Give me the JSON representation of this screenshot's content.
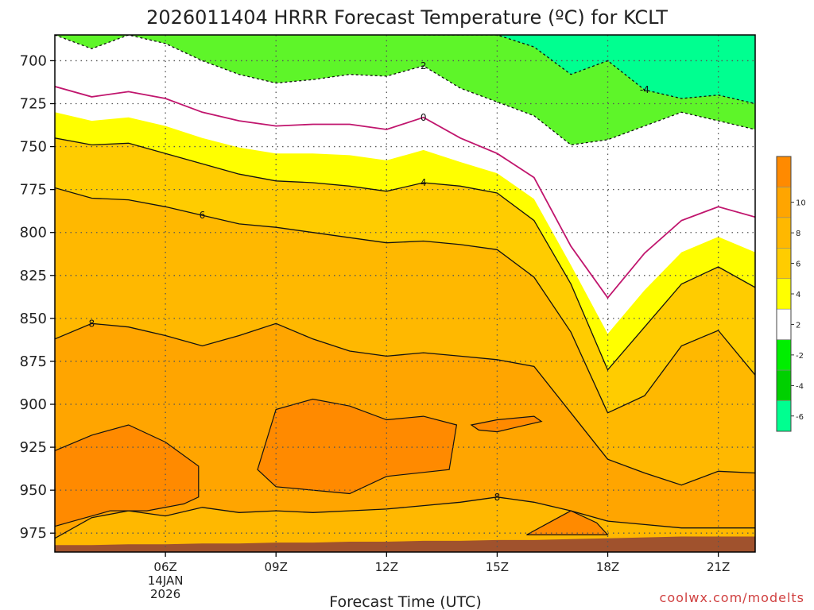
{
  "chart_data": {
    "type": "heatmap",
    "title": "2026011404 HRRR Forecast Temperature (ºC) for KCLT",
    "xlabel": "Forecast Time (UTC)",
    "ylabel": "",
    "credit": "coolwx.com/modelts",
    "x_hours": [
      3,
      4,
      5,
      6,
      7,
      8,
      9,
      10,
      11,
      12,
      13,
      14,
      15,
      16,
      17,
      18,
      19,
      20,
      21,
      22
    ],
    "x_ticks": [
      {
        "hour": 6,
        "lines": [
          "06Z",
          "14JAN",
          "2026"
        ]
      },
      {
        "hour": 9,
        "lines": [
          "09Z"
        ]
      },
      {
        "hour": 12,
        "lines": [
          "12Z"
        ]
      },
      {
        "hour": 15,
        "lines": [
          "15Z"
        ]
      },
      {
        "hour": 18,
        "lines": [
          "18Z"
        ]
      },
      {
        "hour": 21,
        "lines": [
          "21Z"
        ]
      }
    ],
    "xlim": [
      3,
      22
    ],
    "ylim": [
      986,
      685
    ],
    "y_ticks": [
      700,
      725,
      750,
      775,
      800,
      825,
      850,
      875,
      900,
      925,
      950,
      975
    ],
    "surface_pressure_hpa": [
      982,
      982,
      981.5,
      981.5,
      981,
      981,
      980.5,
      980.5,
      980,
      980,
      979.5,
      979.5,
      979,
      979,
      978.5,
      978,
      977.5,
      977,
      977,
      977
    ],
    "isotherms": [
      {
        "temp": 2,
        "label": "2",
        "label_hour": 13,
        "pressure": [
          685,
          693,
          685,
          690,
          700,
          708,
          713,
          711,
          708,
          709,
          703,
          716,
          724,
          732,
          749,
          746,
          738,
          730,
          735,
          740
        ]
      },
      {
        "temp": -4,
        "label": "-4",
        "label_hour": 19,
        "pressure": [
          null,
          null,
          null,
          null,
          null,
          null,
          null,
          null,
          null,
          null,
          685,
          685,
          685,
          692,
          708,
          700,
          717,
          722,
          720,
          725
        ]
      },
      {
        "temp": 0,
        "label": "0",
        "label_hour": 13,
        "pressure": [
          715,
          721,
          718,
          722,
          730,
          735,
          738,
          737,
          737,
          740,
          733,
          745,
          754,
          768,
          808,
          838,
          812,
          793,
          785,
          791
        ]
      },
      {
        "temp": 4,
        "label": "4",
        "label_hour": 13,
        "pressure": [
          745,
          749,
          748,
          754,
          760,
          766,
          770,
          771,
          773,
          776,
          771,
          773,
          777,
          793,
          830,
          880,
          855,
          830,
          820,
          832
        ]
      },
      {
        "temp": 6,
        "label": "6",
        "label_hour": 7,
        "pressure": [
          774,
          780,
          781,
          785,
          790,
          795,
          797,
          800,
          803,
          806,
          805,
          807,
          810,
          826,
          858,
          905,
          895,
          866,
          857,
          883
        ]
      },
      {
        "temp": 8,
        "label": "8",
        "label_hour": 4,
        "pressure": [
          862,
          853,
          855,
          860,
          866,
          860,
          853,
          862,
          869,
          872,
          870,
          872,
          874,
          878,
          905,
          932,
          940,
          947,
          939,
          940
        ]
      },
      {
        "temp": 8,
        "label": "8",
        "label_hour": 15,
        "pressure": [
          978,
          966,
          962,
          965,
          960,
          963,
          962,
          963,
          962,
          961,
          959,
          957,
          954,
          957,
          962,
          968,
          970,
          972,
          972,
          972
        ]
      }
    ],
    "warm_pockets_10c": [
      {
        "points": [
          [
            3,
            927
          ],
          [
            4,
            918
          ],
          [
            5,
            912
          ],
          [
            6,
            922
          ],
          [
            6.9,
            936
          ],
          [
            6.9,
            954
          ],
          [
            6.5,
            958
          ],
          [
            5.5,
            962
          ],
          [
            4.5,
            962
          ],
          [
            3.5,
            968
          ],
          [
            3,
            971
          ]
        ]
      },
      {
        "points": [
          [
            8.5,
            938
          ],
          [
            9,
            903
          ],
          [
            10,
            897
          ],
          [
            11,
            901
          ],
          [
            12,
            909
          ],
          [
            13,
            907
          ],
          [
            13.9,
            912
          ],
          [
            13.7,
            938
          ],
          [
            12,
            942
          ],
          [
            11,
            952
          ],
          [
            10,
            950
          ],
          [
            9,
            948
          ]
        ]
      },
      {
        "points": [
          [
            14.3,
            912
          ],
          [
            15,
            909
          ],
          [
            16,
            907
          ],
          [
            16.2,
            910
          ],
          [
            15.6,
            913
          ],
          [
            15,
            916
          ],
          [
            14.5,
            915
          ]
        ]
      },
      {
        "points": [
          [
            15.8,
            976
          ],
          [
            16.4,
            969
          ],
          [
            17,
            962
          ],
          [
            17.7,
            969
          ],
          [
            18,
            976
          ]
        ]
      }
    ],
    "colorbar": {
      "entries": [
        {
          "label": "",
          "color": "#ff8a00"
        },
        {
          "label": "10",
          "color": "#ffa500"
        },
        {
          "label": "8",
          "color": "#ffb800"
        },
        {
          "label": "6",
          "color": "#ffcc00"
        },
        {
          "label": "4",
          "color": "#ffff00"
        },
        {
          "label": "2",
          "color": "#ffffff"
        },
        {
          "label": "-2",
          "color": "#00ee00"
        },
        {
          "label": "-4",
          "color": "#00d000"
        },
        {
          "label": "-6",
          "color": "#00ff90"
        }
      ]
    },
    "colors": {
      "ge_10": "#ff8a00",
      "c8_10": "#ffa500",
      "c6_8": "#ffb800",
      "c4_6": "#ffcc00",
      "c2_4": "#ffff00",
      "cm2_2": "#ffffff",
      "cm4_m2": "#5ef529",
      "cm6_m4": "#00f56c",
      "le_m6": "#00ff90",
      "ground": "#a0522d",
      "isotherm_0": "#c0156d",
      "contour": "#111111"
    }
  }
}
